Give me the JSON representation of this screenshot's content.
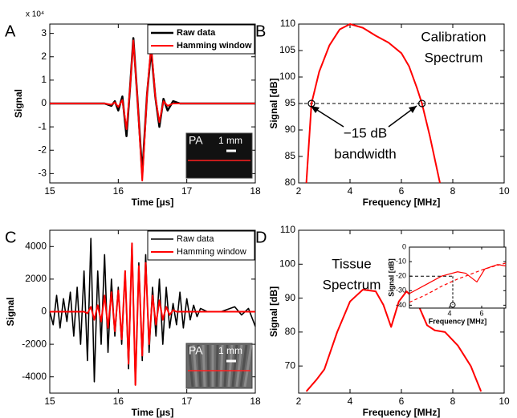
{
  "chart_data": [
    {
      "type": "line",
      "panel": "A",
      "xlabel": "Time [µs]",
      "ylabel": "Signal",
      "y_scale_label": "x 10⁴",
      "xlim": [
        15,
        18
      ],
      "xticks": [
        15,
        16,
        17,
        18
      ],
      "ylim": [
        -3.4,
        3.4
      ],
      "yticks": [
        -3,
        -2,
        -1,
        0,
        1,
        2,
        3
      ],
      "legend": "top-right",
      "image_labels": [
        "PA",
        "1 mm"
      ],
      "x": [
        15,
        15.5,
        15.8,
        15.9,
        15.95,
        16.0,
        16.06,
        16.12,
        16.17,
        16.22,
        16.28,
        16.35,
        16.42,
        16.48,
        16.54,
        16.6,
        16.66,
        16.72,
        16.8,
        16.9,
        17.0,
        17.5,
        18
      ],
      "series": [
        {
          "name": "Raw data",
          "color": "#000000",
          "width": 2.5,
          "values": [
            0,
            0,
            0,
            -0.1,
            0.1,
            -0.3,
            0.3,
            -1.4,
            0.6,
            2.8,
            0.2,
            -3.0,
            0.4,
            2.3,
            0.3,
            -1.0,
            0.2,
            -0.3,
            0.1,
            0,
            0,
            0,
            0
          ]
        },
        {
          "name": "Hamming window",
          "color": "#ff0000",
          "width": 2,
          "values": [
            0,
            0,
            0,
            -0.05,
            0.05,
            -0.15,
            0.15,
            -1.1,
            0.6,
            2.7,
            0.2,
            -3.3,
            0.4,
            2.5,
            0.3,
            -0.8,
            0.1,
            -0.1,
            0,
            0,
            0,
            0,
            0
          ]
        }
      ]
    },
    {
      "type": "line",
      "panel": "B",
      "xlabel": "Frequency [MHz]",
      "ylabel": "Signal [dB]",
      "xlim": [
        2,
        10
      ],
      "xticks": [
        2,
        4,
        6,
        8,
        10
      ],
      "ylim": [
        80,
        110
      ],
      "yticks": [
        80,
        85,
        90,
        95,
        100,
        105,
        110
      ],
      "reference_line": 95,
      "annotations": [
        "Calibration",
        "Spectrum",
        "−15 dB",
        "bandwidth"
      ],
      "markers": [
        {
          "x": 2.5,
          "y": 95
        },
        {
          "x": 6.8,
          "y": 95
        }
      ],
      "x": [
        2.3,
        2.5,
        2.8,
        3.2,
        3.6,
        4,
        4.5,
        5,
        5.5,
        6,
        6.3,
        6.6,
        6.8,
        7.1,
        7.5
      ],
      "series": [
        {
          "color": "#ff0000",
          "width": 2,
          "values": [
            80,
            95,
            101,
            106,
            109,
            110,
            109.3,
            107.8,
            106.5,
            104.5,
            102,
            98,
            95,
            89,
            80
          ]
        }
      ]
    },
    {
      "type": "line",
      "panel": "C",
      "xlabel": "Time [µs]",
      "ylabel": "Signal",
      "xlim": [
        15,
        18
      ],
      "xticks": [
        15,
        16,
        17,
        18
      ],
      "ylim": [
        -5000,
        5000
      ],
      "yticks": [
        -4000,
        -2000,
        0,
        2000,
        4000
      ],
      "legend": "top-right",
      "image_labels": [
        "PA",
        "1 mm"
      ],
      "x": [
        15.0,
        15.05,
        15.1,
        15.15,
        15.2,
        15.25,
        15.3,
        15.35,
        15.4,
        15.45,
        15.5,
        15.55,
        15.6,
        15.65,
        15.7,
        15.75,
        15.8,
        15.85,
        15.9,
        15.95,
        16.0,
        16.05,
        16.1,
        16.15,
        16.2,
        16.25,
        16.3,
        16.35,
        16.4,
        16.45,
        16.5,
        16.55,
        16.6,
        16.65,
        16.7,
        16.75,
        16.8,
        16.85,
        16.9,
        16.95,
        17.0,
        17.05,
        17.1,
        17.15,
        17.2,
        17.3,
        17.5,
        17.7,
        17.8,
        17.9,
        18.0
      ],
      "series": [
        {
          "name": "Raw data",
          "color": "#000000",
          "width": 1.6,
          "values": [
            0,
            -800,
            1000,
            -1000,
            800,
            -600,
            1200,
            -1500,
            1500,
            -2000,
            2500,
            -3000,
            4500,
            -4300,
            2500,
            -2000,
            3500,
            -2500,
            2000,
            -1500,
            1500,
            -2000,
            2500,
            -3500,
            4200,
            -4500,
            3000,
            -3000,
            3500,
            -2500,
            1500,
            -1500,
            2000,
            -2000,
            1500,
            -1000,
            500,
            -800,
            1200,
            -1000,
            800,
            -500,
            400,
            -300,
            200,
            0,
            0,
            300,
            -200,
            200,
            -900
          ]
        },
        {
          "name": "Hamming window",
          "color": "#ff0000",
          "width": 2,
          "values": [
            0,
            0,
            0,
            0,
            0,
            0,
            0,
            0,
            0,
            0,
            0,
            -100,
            300,
            -500,
            400,
            -600,
            1000,
            -1000,
            1200,
            -1200,
            1300,
            -1700,
            2500,
            -3200,
            4200,
            -4500,
            2800,
            -2700,
            3000,
            -2000,
            1000,
            -800,
            700,
            -500,
            300,
            -200,
            100,
            0,
            0,
            0,
            0,
            0,
            0,
            0,
            0,
            0,
            0,
            0,
            0,
            0,
            0
          ]
        }
      ]
    },
    {
      "type": "line",
      "panel": "D",
      "xlabel": "Frequency [MHz]",
      "ylabel": "Signal [dB]",
      "xlim": [
        2,
        10
      ],
      "xticks": [
        2,
        4,
        6,
        8,
        10
      ],
      "ylim": [
        62,
        110
      ],
      "yticks": [
        70,
        80,
        90,
        100,
        110
      ],
      "annotations": [
        "Tissue",
        "Spectrum"
      ],
      "x": [
        2.3,
        2.7,
        3,
        3.5,
        4,
        4.5,
        5,
        5.3,
        5.6,
        5.9,
        6.2,
        6.6,
        7,
        7.3,
        7.7,
        8.2,
        8.7,
        9.1
      ],
      "series": [
        {
          "color": "#ff0000",
          "width": 2,
          "values": [
            62.5,
            66,
            69,
            80,
            89,
            92.5,
            92,
            88,
            81.5,
            89,
            92,
            89,
            82,
            80.5,
            80,
            76,
            70,
            62.5
          ]
        }
      ]
    },
    {
      "type": "line",
      "xlabel": "Frequency [MHz]",
      "ylabel": "Signal [dB]",
      "xlim": [
        1.5,
        7.5
      ],
      "xticks": [
        4,
        6
      ],
      "ylim": [
        -42,
        0
      ],
      "yticks": [
        0,
        -10,
        -20,
        -30,
        -40
      ],
      "reference_line": -20,
      "reference_x": 4.2,
      "x": [
        1.5,
        2.5,
        3.5,
        4.5,
        5.0,
        5.7,
        6.2,
        7.0,
        7.5
      ],
      "series": [
        {
          "color": "#ff0000",
          "width": 1.2,
          "dash": true,
          "values": [
            -38,
            -33,
            -27,
            -22,
            -20,
            -17,
            -15,
            -12.5,
            -11
          ]
        },
        {
          "color": "#ff0000",
          "width": 1.2,
          "values": [
            -32,
            -26,
            -20,
            -17,
            -18,
            -24,
            -15,
            -12,
            -13
          ]
        }
      ]
    }
  ]
}
